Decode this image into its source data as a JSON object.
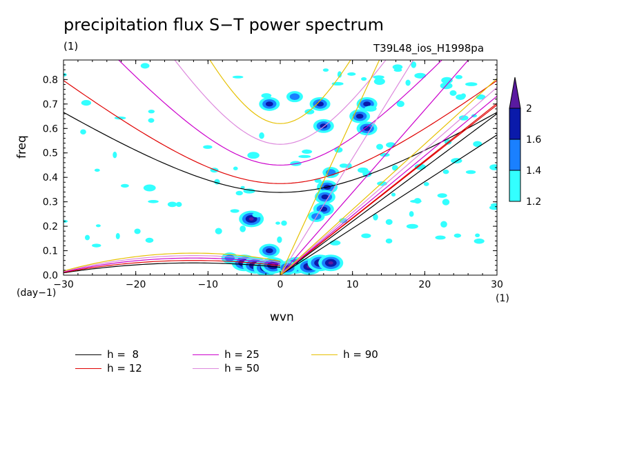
{
  "title": "precipitation flux S−T power spectrum",
  "subtitle_left": "(1)",
  "subtitle_right": "T39L48_ios_H1998pa",
  "colors": {
    "shade_1": "#33ffff",
    "shade_2": "#1a80ff",
    "shade_3": "#0a1aaa",
    "shade_4": "#5a1aa0",
    "h8": "#000000",
    "h12": "#e00000",
    "h25": "#cc00cc",
    "h50": "#dd88dd",
    "h90": "#e6c000"
  },
  "chart_data": {
    "type": "contour",
    "xlabel": "wvn",
    "ylabel": "freq",
    "x_unit_left": "(day−1)",
    "x_unit_right": "(1)",
    "xlim": [
      -30,
      30
    ],
    "ylim": [
      0,
      0.88
    ],
    "xticks": [
      -30,
      -20,
      -10,
      0,
      10,
      20,
      30
    ],
    "xtick_labels": [
      "−30",
      "−20",
      "−10",
      "0",
      "10",
      "20",
      "30"
    ],
    "yticks": [
      0.0,
      0.1,
      0.2,
      0.3,
      0.4,
      0.5,
      0.6,
      0.7,
      0.8
    ],
    "ytick_labels": [
      "0.0",
      "0.1",
      "0.2",
      "0.3",
      "0.4",
      "0.5",
      "0.6",
      "0.7",
      "0.8"
    ],
    "colorbar": {
      "levels": [
        1.2,
        1.4,
        1.6,
        2
      ],
      "labels": [
        "1.2",
        "1.4",
        "1.6",
        "2"
      ],
      "colors": [
        "#33ffff",
        "#1a80ff",
        "#0a1aaa",
        "#5a1aa0"
      ]
    },
    "dispersion_curves": [
      {
        "name": "h = 8",
        "label": "h =  8",
        "h": 8,
        "color": "#000000"
      },
      {
        "name": "h = 12",
        "label": "h = 12",
        "h": 12,
        "color": "#e00000"
      },
      {
        "name": "h = 25",
        "label": "h = 25",
        "h": 25,
        "color": "#cc00cc"
      },
      {
        "name": "h = 50",
        "label": "h = 50",
        "h": 50,
        "color": "#dd88dd"
      },
      {
        "name": "h = 90",
        "label": "h = 90",
        "h": 90,
        "color": "#e6c000"
      }
    ],
    "blobs": [
      {
        "x": -5.0,
        "y": 0.05,
        "level": 3
      },
      {
        "x": -3.5,
        "y": 0.04,
        "level": 3
      },
      {
        "x": -2.0,
        "y": 0.03,
        "level": 3
      },
      {
        "x": -1.0,
        "y": 0.04,
        "level": 3
      },
      {
        "x": 2.2,
        "y": 0.04,
        "level": 3
      },
      {
        "x": 4.0,
        "y": 0.035,
        "level": 3
      },
      {
        "x": 5.5,
        "y": 0.05,
        "level": 3
      },
      {
        "x": 7.0,
        "y": 0.05,
        "level": 3
      },
      {
        "x": 1.0,
        "y": 0.03,
        "level": 2
      },
      {
        "x": -1.5,
        "y": 0.1,
        "level": 2
      },
      {
        "x": -4.0,
        "y": 0.23,
        "level": 3
      },
      {
        "x": 6.5,
        "y": 0.36,
        "level": 2
      },
      {
        "x": 6.0,
        "y": 0.27,
        "level": 2
      },
      {
        "x": 6.2,
        "y": 0.32,
        "level": 2
      },
      {
        "x": 11.0,
        "y": 0.65,
        "level": 2
      },
      {
        "x": 12.0,
        "y": 0.6,
        "level": 2
      },
      {
        "x": 12.0,
        "y": 0.7,
        "level": 2
      },
      {
        "x": 5.5,
        "y": 0.7,
        "level": 2
      },
      {
        "x": 5.0,
        "y": 0.24,
        "level": 1
      },
      {
        "x": 7.0,
        "y": 0.42,
        "level": 1
      },
      {
        "x": -7.0,
        "y": 0.07,
        "level": 1
      },
      {
        "x": 6.0,
        "y": 0.61,
        "level": 2
      },
      {
        "x": -1.5,
        "y": 0.7,
        "level": 2
      },
      {
        "x": 2.0,
        "y": 0.73,
        "level": 1
      }
    ]
  }
}
